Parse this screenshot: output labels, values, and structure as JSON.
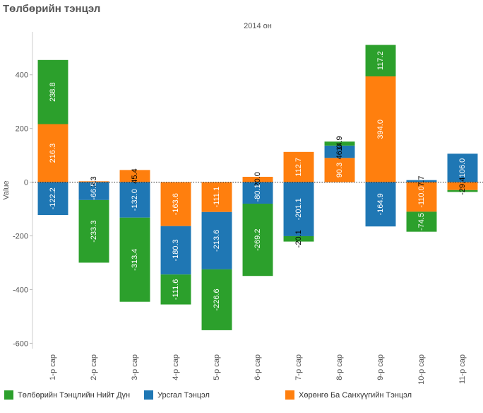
{
  "page_title": "Төлбөрийн тэнцэл",
  "chart_data": {
    "type": "bar",
    "stacked": true,
    "column_header": "2014 он",
    "ylabel": "Value",
    "ylim": [
      -620,
      560
    ],
    "yticks": [
      -600,
      -400,
      -200,
      0,
      200,
      400
    ],
    "zero_line": "dotted",
    "categories": [
      "1-р сар",
      "2-р сар",
      "3-р сар",
      "4-р сар",
      "5-р сар",
      "6-р сар",
      "7-р сар",
      "8-р сар",
      "9-р сар",
      "10-р сар",
      "11-р сар"
    ],
    "series": [
      {
        "name": "Хөрөнгө Ба Санхүүгийн Тэнцэл",
        "color": "#ff7f0e",
        "values": [
          216.3,
          3.3,
          45.4,
          -163.6,
          -111.1,
          20.0,
          112.7,
          90.3,
          394.0,
          -110.0,
          -29.4
        ]
      },
      {
        "name": "Урсгал Тэнцэл",
        "color": "#1f77b4",
        "values": [
          -122.2,
          -66.5,
          -132.0,
          -180.3,
          -213.6,
          -80.1,
          -201.1,
          46.0,
          -164.9,
          7.7,
          106.0
        ]
      },
      {
        "name": "Төлбөрийн Тэнцлийн Нийт Дүн",
        "color": "#2ca02c",
        "values": [
          238.8,
          -233.3,
          -313.4,
          -111.6,
          -226.6,
          -269.2,
          -20.1,
          14.9,
          117.2,
          -74.5,
          -7.0
        ]
      }
    ],
    "labels": [
      [
        "216.3",
        "-122.2",
        "238.8"
      ],
      [
        "3.3",
        "-66.5",
        "-233.3"
      ],
      [
        "45.4",
        "-132.0",
        "-313.4"
      ],
      [
        "-163.6",
        "-180.3",
        "-111.6"
      ],
      [
        "-111.1",
        "-213.6",
        "-226.6"
      ],
      [
        "20.0",
        "-80.1",
        "-269.2"
      ],
      [
        "112.7",
        "-201.1",
        "-20.1"
      ],
      [
        "90.3",
        "46.0",
        "14.9"
      ],
      [
        "394.0",
        "-164.9",
        "117.2"
      ],
      [
        "-110.0",
        "7.7",
        "-74.5"
      ],
      [
        "-29.4",
        "106.0",
        ""
      ]
    ],
    "legend": [
      {
        "label": "Төлбөрийн Тэнцлийн Нийт Дүн",
        "color": "#2ca02c"
      },
      {
        "label": "Урсгал Тэнцэл",
        "color": "#1f77b4"
      },
      {
        "label": "Хөрөнгө Ба Санхүүгийн Тэнцэл",
        "color": "#ff7f0e"
      }
    ],
    "legend_position": "bottom",
    "grid": false
  }
}
